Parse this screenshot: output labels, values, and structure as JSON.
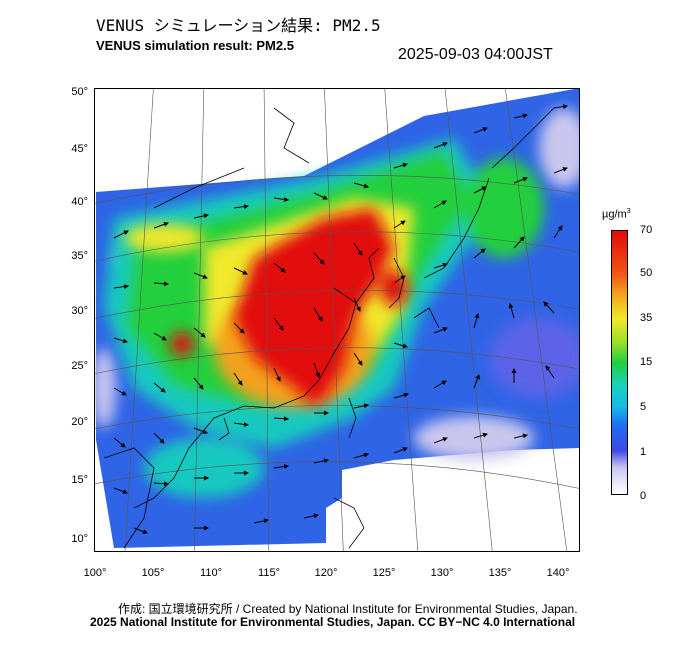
{
  "header": {
    "title_jp": "VENUS シミュレーション結果: PM2.5",
    "title_en": "VENUS simulation result: PM2.5",
    "timestamp": "2025-09-03 04:00JST"
  },
  "map": {
    "variable": "PM2.5",
    "lon_ticks": [
      "100°",
      "105°",
      "110°",
      "115°",
      "120°",
      "125°",
      "130°",
      "135°",
      "140°"
    ],
    "lat_ticks": [
      "50°",
      "45°",
      "40°",
      "35°",
      "30°",
      "25°",
      "20°",
      "15°",
      "10°"
    ],
    "lon_range": [
      100,
      142
    ],
    "lat_range": [
      9,
      51
    ],
    "high_concentration_region": "Eastern China / Yellow Sea"
  },
  "colorbar": {
    "unit": "µg/m",
    "unit_sup": "3",
    "labels": [
      "70",
      "50",
      "35",
      "15",
      "5",
      "1",
      "0"
    ]
  },
  "footer": {
    "credit": "作成: 国立環境研究所 / Created by National Institute for Environmental Studies, Japan.",
    "license": "2025 National Institute for Environmental Studies, Japan. CC BY−NC 4.0 International"
  },
  "colors": {
    "high": "#e20a0a",
    "mid": "#21cf3c",
    "low": "#3d49e8",
    "background": "#ffffff"
  }
}
